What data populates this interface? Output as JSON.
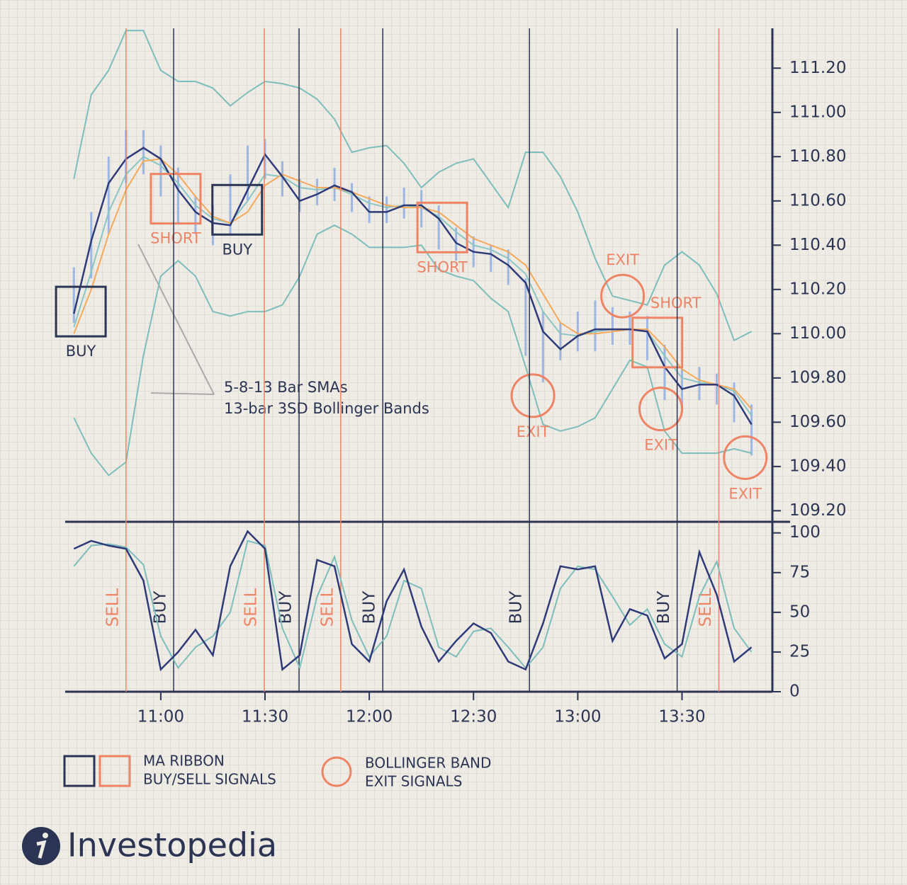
{
  "chart_data": [
    {
      "type": "line",
      "x": [
        635,
        640,
        645,
        650,
        655,
        660,
        665,
        670,
        675,
        680,
        685,
        690,
        695,
        700,
        705,
        710,
        715,
        720,
        725,
        730,
        735,
        740,
        745,
        750,
        755,
        760,
        765,
        770,
        775,
        780,
        785,
        790,
        795,
        800,
        805,
        810,
        815,
        820,
        825,
        830
      ],
      "xlim": [
        632.5,
        836
      ],
      "ylim": [
        109.15,
        111.38
      ],
      "yticks": [
        {
          "value": 109.2,
          "label": "109.20"
        },
        {
          "value": 109.4,
          "label": "109.40"
        },
        {
          "value": 109.6,
          "label": "109.60"
        },
        {
          "value": 109.8,
          "label": "109.80"
        },
        {
          "value": 110,
          "label": "110.00"
        },
        {
          "value": 110.2,
          "label": "110.20"
        },
        {
          "value": 110.4,
          "label": "110.40"
        },
        {
          "value": 110.6,
          "label": "110.60"
        },
        {
          "value": 110.8,
          "label": "110.80"
        },
        {
          "value": 111,
          "label": "111.00"
        },
        {
          "value": 111.2,
          "label": "111.20"
        }
      ],
      "range_bars": {
        "color": "#9db6e2",
        "high": [
          110.3,
          110.55,
          110.8,
          110.92,
          110.92,
          110.85,
          110.75,
          110.62,
          110.58,
          110.72,
          110.85,
          110.88,
          110.78,
          110.7,
          110.7,
          110.75,
          110.68,
          110.62,
          110.62,
          110.66,
          110.65,
          110.58,
          110.48,
          110.44,
          110.4,
          110.38,
          110.25,
          110.1,
          110.05,
          110.1,
          110.15,
          110.12,
          110.1,
          110.08,
          109.95,
          109.85,
          109.85,
          109.82,
          109.78,
          109.68
        ],
        "low": [
          110.05,
          110.25,
          110.45,
          110.68,
          110.72,
          110.62,
          110.5,
          110.45,
          110.4,
          110.45,
          110.6,
          110.7,
          110.62,
          110.55,
          110.58,
          110.6,
          110.55,
          110.5,
          110.5,
          110.52,
          110.48,
          110.38,
          110.33,
          110.3,
          110.28,
          110.22,
          109.9,
          109.78,
          109.88,
          109.92,
          109.92,
          109.95,
          109.95,
          109.88,
          109.7,
          109.66,
          109.7,
          109.68,
          109.6,
          109.45
        ]
      },
      "series": [
        {
          "color": "#7dbdbb",
          "values": [
            110.7,
            111.08,
            111.19,
            111.37,
            111.37,
            111.19,
            111.14,
            111.14,
            111.11,
            111.03,
            111.09,
            111.14,
            111.13,
            111.11,
            111.06,
            110.97,
            110.82,
            110.84,
            110.85,
            110.77,
            110.66,
            110.73,
            110.77,
            110.79,
            110.68,
            110.57,
            110.82,
            110.82,
            110.71,
            110.55,
            110.34,
            110.17,
            110.15,
            110.13,
            110.31,
            110.37,
            110.31,
            110.18,
            109.97,
            110.01
          ]
        },
        {
          "color": "#7dbdbb",
          "values": [
            109.62,
            109.46,
            109.36,
            109.42,
            109.9,
            110.26,
            110.33,
            110.26,
            110.1,
            110.08,
            110.1,
            110.1,
            110.13,
            110.26,
            110.45,
            110.49,
            110.45,
            110.39,
            110.39,
            110.39,
            110.4,
            110.29,
            110.26,
            110.24,
            110.16,
            110.1,
            109.85,
            109.59,
            109.56,
            109.58,
            109.62,
            109.75,
            109.88,
            109.85,
            109.56,
            109.46,
            109.46,
            109.46,
            109.48,
            109.46
          ]
        },
        {
          "color": "#8cc6c4",
          "values": [
            110.03,
            110.28,
            110.55,
            110.72,
            110.8,
            110.76,
            110.68,
            110.58,
            110.52,
            110.5,
            110.6,
            110.72,
            110.71,
            110.66,
            110.65,
            110.66,
            110.63,
            110.59,
            110.57,
            110.58,
            110.57,
            110.53,
            110.46,
            110.4,
            110.38,
            110.34,
            110.27,
            110.1,
            110.0,
            109.99,
            110.01,
            110.02,
            110.02,
            110.01,
            109.9,
            109.8,
            109.78,
            109.77,
            109.74,
            109.63
          ]
        },
        {
          "color": "#f5a95a",
          "values": [
            110.0,
            110.2,
            110.45,
            110.65,
            110.78,
            110.79,
            110.72,
            110.62,
            110.53,
            110.5,
            110.55,
            110.67,
            110.72,
            110.69,
            110.66,
            110.66,
            110.64,
            110.61,
            110.58,
            110.57,
            110.57,
            110.55,
            110.49,
            110.43,
            110.4,
            110.37,
            110.31,
            110.18,
            110.05,
            110.0,
            110.0,
            110.01,
            110.02,
            110.02,
            109.94,
            109.84,
            109.79,
            109.77,
            109.75,
            109.66
          ]
        },
        {
          "color": "#2f3a78",
          "values": [
            110.09,
            110.42,
            110.68,
            110.79,
            110.84,
            110.79,
            110.65,
            110.55,
            110.5,
            110.49,
            110.65,
            110.81,
            110.71,
            110.6,
            110.63,
            110.67,
            110.64,
            110.55,
            110.55,
            110.58,
            110.58,
            110.52,
            110.41,
            110.37,
            110.36,
            110.31,
            110.23,
            110.01,
            109.93,
            109.99,
            110.02,
            110.02,
            110.02,
            110.01,
            109.85,
            109.75,
            109.77,
            109.77,
            109.72,
            109.59
          ]
        }
      ],
      "annotations": [
        {
          "shape": "square",
          "color": "#2b3553",
          "x": 637,
          "y": 110.1,
          "label": "BUY",
          "label_position": "below"
        },
        {
          "shape": "square",
          "color": "#ee8466",
          "x": 664.3,
          "y": 110.61,
          "label": "SHORT",
          "label_position": "below"
        },
        {
          "shape": "square",
          "color": "#2b3553",
          "x": 682,
          "y": 110.56,
          "label": "BUY",
          "label_position": "below"
        },
        {
          "shape": "square",
          "color": "#ee8466",
          "x": 741,
          "y": 110.48,
          "label": "SHORT",
          "label_position": "below"
        },
        {
          "shape": "square",
          "color": "#ee8466",
          "x": 802.9,
          "y": 109.96,
          "label": "SHORT",
          "label_position": "above"
        },
        {
          "shape": "circle",
          "color": "#ee8466",
          "x": 792.9,
          "y": 110.17,
          "label": "EXIT",
          "label_position": "above"
        },
        {
          "shape": "circle",
          "color": "#ee8466",
          "x": 767.1,
          "y": 109.72,
          "label": "EXIT",
          "label_position": "below"
        },
        {
          "shape": "circle",
          "color": "#ee8466",
          "x": 803.9,
          "y": 109.66,
          "label": "EXIT",
          "label_position": "below"
        },
        {
          "shape": "circle",
          "color": "#ee8466",
          "x": 828.2,
          "y": 109.44,
          "label": "EXIT",
          "label_position": "below"
        }
      ],
      "note": [
        "5-8-13 Bar SMAs",
        "13-bar 3SD Bollinger Bands"
      ]
    },
    {
      "type": "line",
      "x": [
        635,
        640,
        645,
        650,
        655,
        660,
        665,
        670,
        675,
        680,
        685,
        690,
        695,
        700,
        705,
        710,
        715,
        720,
        725,
        730,
        735,
        740,
        745,
        750,
        755,
        760,
        765,
        770,
        775,
        780,
        785,
        790,
        795,
        800,
        805,
        810,
        815,
        820,
        825,
        830
      ],
      "xlim": [
        632.5,
        836
      ],
      "ylim": [
        0,
        107
      ],
      "xticks": [
        {
          "value": 660,
          "label": "11:00"
        },
        {
          "value": 690,
          "label": "11:30"
        },
        {
          "value": 720,
          "label": "12:00"
        },
        {
          "value": 750,
          "label": "12:30"
        },
        {
          "value": 780,
          "label": "13:00"
        },
        {
          "value": 810,
          "label": "13:30"
        }
      ],
      "yticks": [
        0,
        25,
        50,
        75,
        100
      ],
      "series": [
        {
          "color": "#7dbdbb",
          "values": [
            79,
            92,
            93,
            91,
            80,
            35,
            15,
            28,
            35,
            50,
            95,
            92,
            40,
            15,
            60,
            85,
            45,
            22,
            35,
            70,
            65,
            28,
            22,
            38,
            40,
            28,
            15,
            28,
            65,
            79,
            77,
            60,
            42,
            52,
            30,
            22,
            60,
            82,
            40,
            25
          ]
        },
        {
          "color": "#2f3a78",
          "values": [
            90,
            95,
            92,
            90,
            70,
            14,
            25,
            39,
            23,
            79,
            101,
            90,
            14,
            23,
            83,
            79,
            30,
            19,
            57,
            77,
            41,
            19,
            32,
            43,
            37,
            19,
            14,
            43,
            79,
            77,
            79,
            32,
            52,
            48,
            21,
            30,
            88,
            61,
            19,
            28
          ]
        }
      ],
      "signals": [
        {
          "x": 650,
          "label": "SELL",
          "color": "#ee8466"
        },
        {
          "x": 663.7,
          "label": "BUY",
          "color": "#2b3553"
        },
        {
          "x": 689.8,
          "label": "SELL",
          "color": "#ee8466"
        },
        {
          "x": 699.8,
          "label": "BUY",
          "color": "#2b3553"
        },
        {
          "x": 711.8,
          "label": "SELL",
          "color": "#ee8466"
        },
        {
          "x": 723.9,
          "label": "BUY",
          "color": "#2b3553"
        },
        {
          "x": 766.1,
          "label": "BUY",
          "color": "#2b3553"
        },
        {
          "x": 808.6,
          "label": "BUY",
          "color": "#2b3553"
        },
        {
          "x": 820.6,
          "label": "SELL",
          "color": "#ee8466"
        }
      ]
    }
  ],
  "legend": [
    {
      "lines": [
        "MA RIBBON",
        "BUY/SELL SIGNALS"
      ]
    },
    {
      "lines": [
        "BOLLINGER BAND",
        "EXIT SIGNALS"
      ]
    }
  ],
  "logo": "Investopedia"
}
